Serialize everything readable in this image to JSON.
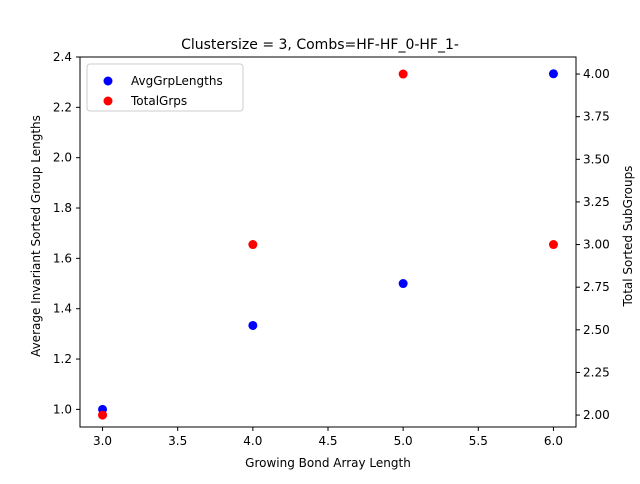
{
  "chart_data": {
    "type": "scatter",
    "title": "Clustersize = 3, Combs=HF-HF_0-HF_1-",
    "xlabel": "Growing Bond Array Length",
    "ylabel_left": "Average Invariant Sorted Group Lengths",
    "ylabel_right": "Total Sorted SubGroups",
    "xlim": [
      2.85,
      6.15
    ],
    "ylim_left": [
      0.93,
      2.4
    ],
    "ylim_right": [
      1.93,
      4.1
    ],
    "x_ticks": [
      3.0,
      3.5,
      4.0,
      4.5,
      5.0,
      5.5,
      6.0
    ],
    "x_tick_labels": [
      "3.0",
      "3.5",
      "4.0",
      "4.5",
      "5.0",
      "5.5",
      "6.0"
    ],
    "y_left_ticks": [
      1.0,
      1.2,
      1.4,
      1.6,
      1.8,
      2.0,
      2.2,
      2.4
    ],
    "y_left_tick_labels": [
      "1.0",
      "1.2",
      "1.4",
      "1.6",
      "1.8",
      "2.0",
      "2.2",
      "2.4"
    ],
    "y_right_ticks": [
      2.0,
      2.25,
      2.5,
      2.75,
      3.0,
      3.25,
      3.5,
      3.75,
      4.0
    ],
    "y_right_tick_labels": [
      "2.00",
      "2.25",
      "2.50",
      "2.75",
      "3.00",
      "3.25",
      "3.50",
      "3.75",
      "4.00"
    ],
    "grid": false,
    "legend_position": "top-left",
    "series": [
      {
        "name": "AvgGrpLengths",
        "axis": "left",
        "color": "#0000ff",
        "x": [
          3,
          4,
          5,
          6
        ],
        "y": [
          1.0,
          1.3333,
          1.5,
          2.3333
        ]
      },
      {
        "name": "TotalGrps",
        "axis": "right",
        "color": "#ff0000",
        "x": [
          3,
          4,
          5,
          6
        ],
        "y": [
          2,
          3,
          4,
          3
        ]
      }
    ]
  }
}
